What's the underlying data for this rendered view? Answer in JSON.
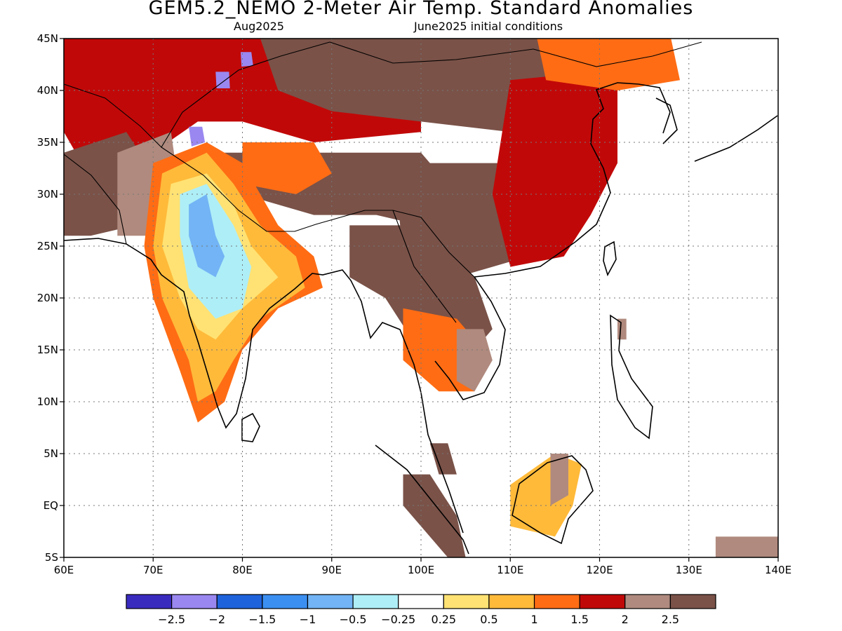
{
  "title": "GEM5.2_NEMO 2-Meter Air Temp. Standard Anomalies",
  "valid_month": "Aug2025",
  "init_label": "June2025 initial conditions",
  "map": {
    "lon_range": [
      60,
      140
    ],
    "lat_range": [
      -5,
      45
    ],
    "lon_ticks": [
      {
        "v": 60,
        "label": "60E"
      },
      {
        "v": 70,
        "label": "70E"
      },
      {
        "v": 80,
        "label": "80E"
      },
      {
        "v": 90,
        "label": "90E"
      },
      {
        "v": 100,
        "label": "100E"
      },
      {
        "v": 110,
        "label": "110E"
      },
      {
        "v": 120,
        "label": "120E"
      },
      {
        "v": 130,
        "label": "130E"
      },
      {
        "v": 140,
        "label": "140E"
      }
    ],
    "lat_ticks": [
      {
        "v": 45,
        "label": "45N"
      },
      {
        "v": 40,
        "label": "40N"
      },
      {
        "v": 35,
        "label": "35N"
      },
      {
        "v": 30,
        "label": "30N"
      },
      {
        "v": 25,
        "label": "25N"
      },
      {
        "v": 20,
        "label": "20N"
      },
      {
        "v": 15,
        "label": "15N"
      },
      {
        "v": 10,
        "label": "10N"
      },
      {
        "v": 5,
        "label": "5N"
      },
      {
        "v": 0,
        "label": "EQ"
      },
      {
        "v": -5,
        "label": "5S"
      }
    ],
    "grid": "dotted"
  },
  "colorbar": {
    "colors": [
      "#3a2bbf",
      "#9a88f0",
      "#1f63dc",
      "#3b8ff0",
      "#72b4f5",
      "#aeeef7",
      "#ffffff",
      "#ffe273",
      "#ffba3a",
      "#ff6c14",
      "#c10808",
      "#b08a7e",
      "#7a5248"
    ],
    "labels": [
      "-2.5",
      "-2",
      "-1.5",
      "-1",
      "-0.5",
      "-0.25",
      "0.25",
      "0.5",
      "1",
      "1.5",
      "2",
      "2.5"
    ]
  },
  "regions": [
    {
      "name": "central-asia-warm-anomaly",
      "level": 1.5,
      "poly": [
        [
          60,
          45
        ],
        [
          100,
          45
        ],
        [
          100,
          36
        ],
        [
          88,
          35
        ],
        [
          80,
          37
        ],
        [
          75,
          37
        ],
        [
          70,
          34
        ],
        [
          62,
          33
        ],
        [
          60,
          36
        ]
      ]
    },
    {
      "name": "mongolia-north-china-high",
      "level": 2.5,
      "poly": [
        [
          82,
          45
        ],
        [
          118,
          45
        ],
        [
          118,
          38
        ],
        [
          110,
          36
        ],
        [
          100,
          37
        ],
        [
          90,
          38
        ],
        [
          84,
          40
        ]
      ]
    },
    {
      "name": "tibet-plateau-high",
      "level": 2.5,
      "poly": [
        [
          78,
          34
        ],
        [
          100,
          34
        ],
        [
          104,
          30
        ],
        [
          100,
          27
        ],
        [
          95,
          28
        ],
        [
          88,
          28
        ],
        [
          80,
          30
        ]
      ]
    },
    {
      "name": "south-china-high",
      "level": 2.5,
      "poly": [
        [
          97,
          33
        ],
        [
          112,
          33
        ],
        [
          116,
          28
        ],
        [
          112,
          24
        ],
        [
          104,
          22
        ],
        [
          98,
          24
        ]
      ]
    },
    {
      "name": "north-china-plain-warm",
      "level": 1.5,
      "poly": [
        [
          110,
          41
        ],
        [
          122,
          42
        ],
        [
          122,
          33
        ],
        [
          119,
          28
        ],
        [
          116,
          24
        ],
        [
          110,
          23
        ],
        [
          108,
          30
        ]
      ]
    },
    {
      "name": "northeast-china-warm",
      "level": 1,
      "poly": [
        [
          113,
          45
        ],
        [
          128,
          45
        ],
        [
          129,
          41
        ],
        [
          122,
          40
        ],
        [
          114,
          41
        ]
      ]
    },
    {
      "name": "iran-afghanistan-high",
      "level": 2.5,
      "poly": [
        [
          60,
          34
        ],
        [
          67,
          36
        ],
        [
          70,
          32
        ],
        [
          68,
          27
        ],
        [
          63,
          26
        ],
        [
          60,
          26
        ]
      ]
    },
    {
      "name": "pakistan-west-high",
      "level": 2,
      "poly": [
        [
          66,
          34
        ],
        [
          72,
          36
        ],
        [
          73,
          30
        ],
        [
          70,
          26
        ],
        [
          66,
          26
        ]
      ]
    },
    {
      "name": "india-north-rim-warm",
      "level": 1,
      "poly": [
        [
          70,
          33
        ],
        [
          76,
          35
        ],
        [
          80,
          33
        ],
        [
          84,
          27
        ],
        [
          88,
          24
        ],
        [
          89,
          21
        ],
        [
          84,
          19
        ],
        [
          80,
          15
        ],
        [
          78,
          10
        ],
        [
          75,
          8
        ],
        [
          73,
          13
        ],
        [
          70,
          20
        ],
        [
          69,
          25
        ]
      ]
    },
    {
      "name": "india-north-rim-mild",
      "level": 0.5,
      "poly": [
        [
          71,
          32
        ],
        [
          76,
          34
        ],
        [
          79,
          31
        ],
        [
          82,
          27
        ],
        [
          86,
          24
        ],
        [
          87,
          21
        ],
        [
          82,
          18
        ],
        [
          79,
          14
        ],
        [
          77,
          11
        ],
        [
          75,
          10
        ],
        [
          74,
          14
        ],
        [
          71,
          20
        ],
        [
          70,
          25
        ]
      ]
    },
    {
      "name": "india-neutral-band",
      "level": 0.25,
      "poly": [
        [
          72,
          31
        ],
        [
          76,
          32
        ],
        [
          79,
          29
        ],
        [
          81,
          25
        ],
        [
          84,
          22
        ],
        [
          80,
          19
        ],
        [
          77,
          16
        ],
        [
          75,
          17
        ],
        [
          73,
          20
        ],
        [
          71,
          25
        ]
      ]
    },
    {
      "name": "india-cool-anomaly",
      "level": -0.5,
      "poly": [
        [
          73,
          30
        ],
        [
          76,
          31
        ],
        [
          79,
          27
        ],
        [
          81,
          23
        ],
        [
          80,
          19
        ],
        [
          77,
          18
        ],
        [
          74,
          21
        ],
        [
          73,
          26
        ]
      ]
    },
    {
      "name": "india-cooler-core",
      "level": -1,
      "poly": [
        [
          74,
          29
        ],
        [
          76,
          30
        ],
        [
          77,
          26
        ],
        [
          78,
          24
        ],
        [
          77,
          22
        ],
        [
          75,
          23
        ],
        [
          74,
          26
        ]
      ]
    },
    {
      "name": "kashmir-cold-spot",
      "level": -2.5,
      "poly": [
        [
          74,
          36.5
        ],
        [
          75.5,
          36.5
        ],
        [
          75.8,
          35
        ],
        [
          74.3,
          34.6
        ]
      ]
    },
    {
      "name": "tianshan-cold-spot-1",
      "level": -2.5,
      "poly": [
        [
          79.8,
          43.7
        ],
        [
          81,
          43.7
        ],
        [
          81.2,
          42.4
        ],
        [
          79.9,
          42.3
        ]
      ]
    },
    {
      "name": "tianshan-cold-spot-2",
      "level": -2.5,
      "poly": [
        [
          77,
          41.8
        ],
        [
          78.5,
          41.8
        ],
        [
          78.6,
          40.2
        ],
        [
          77.1,
          40.2
        ]
      ]
    },
    {
      "name": "tibet-warm-arm",
      "level": 1,
      "poly": [
        [
          80,
          35
        ],
        [
          88,
          35
        ],
        [
          90,
          32
        ],
        [
          86,
          30
        ],
        [
          80,
          31
        ]
      ]
    },
    {
      "name": "indochina-high",
      "level": 2.5,
      "poly": [
        [
          92,
          27
        ],
        [
          100,
          27
        ],
        [
          106,
          22
        ],
        [
          108,
          17
        ],
        [
          104,
          13
        ],
        [
          99,
          16
        ],
        [
          96,
          20
        ],
        [
          92,
          22
        ]
      ]
    },
    {
      "name": "thailand-warm",
      "level": 1,
      "poly": [
        [
          98,
          19
        ],
        [
          104,
          18
        ],
        [
          107,
          15
        ],
        [
          106,
          11
        ],
        [
          102,
          11
        ],
        [
          98,
          14
        ]
      ]
    },
    {
      "name": "cambodia-hot",
      "level": 2,
      "poly": [
        [
          104,
          17
        ],
        [
          107,
          17
        ],
        [
          108,
          14
        ],
        [
          106,
          11
        ],
        [
          104,
          12
        ]
      ]
    },
    {
      "name": "borneo-mild",
      "level": 0.5,
      "poly": [
        [
          110,
          2
        ],
        [
          115,
          5
        ],
        [
          118,
          4
        ],
        [
          117,
          0
        ],
        [
          115,
          -3
        ],
        [
          110,
          -2
        ]
      ]
    },
    {
      "name": "borneo-hot-core",
      "level": 2,
      "poly": [
        [
          114.5,
          5
        ],
        [
          116.5,
          5
        ],
        [
          116.5,
          1
        ],
        [
          114.5,
          0
        ]
      ]
    },
    {
      "name": "sumatra-high",
      "level": 2.5,
      "poly": [
        [
          98,
          3
        ],
        [
          101,
          3
        ],
        [
          104,
          -1
        ],
        [
          105,
          -5
        ],
        [
          103,
          -5
        ],
        [
          98,
          0
        ]
      ]
    },
    {
      "name": "malaysia-high",
      "level": 2.5,
      "poly": [
        [
          101,
          6
        ],
        [
          103,
          6
        ],
        [
          104,
          3
        ],
        [
          102,
          3
        ]
      ]
    },
    {
      "name": "philippines-hot",
      "level": 2,
      "poly": [
        [
          122,
          18
        ],
        [
          123,
          18
        ],
        [
          123,
          16
        ],
        [
          122,
          16
        ]
      ]
    },
    {
      "name": "new-guinea-hot",
      "level": 2,
      "poly": [
        [
          133,
          -3
        ],
        [
          140,
          -3
        ],
        [
          140,
          -5
        ],
        [
          133,
          -5
        ]
      ]
    }
  ]
}
